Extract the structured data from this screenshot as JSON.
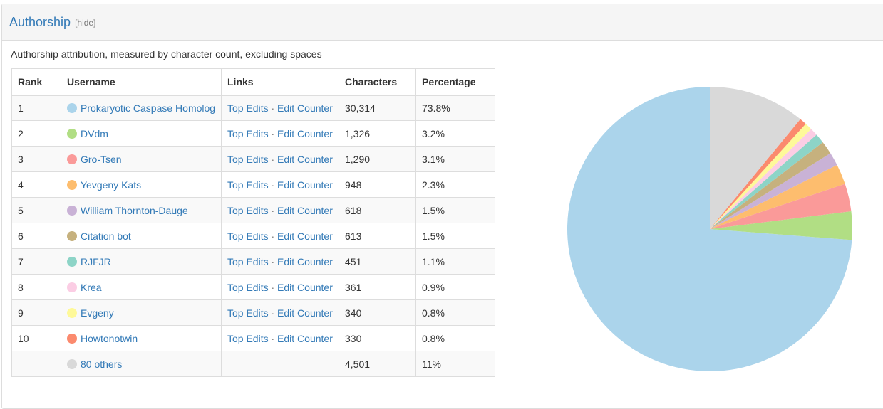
{
  "section": {
    "title": "Authorship",
    "toggle": "[hide]",
    "description": "Authorship attribution, measured by character count, excluding spaces"
  },
  "table": {
    "headers": {
      "rank": "Rank",
      "username": "Username",
      "links": "Links",
      "characters": "Characters",
      "percentage": "Percentage"
    },
    "link_labels": {
      "top_edits": "Top Edits",
      "separator": "·",
      "edit_counter": "Edit Counter"
    },
    "rows": [
      {
        "rank": "1",
        "username": "Prokaryotic Caspase Homolog",
        "characters": "30,314",
        "percentage": "73.8%",
        "color": "#abd4eb"
      },
      {
        "rank": "2",
        "username": "DVdm",
        "characters": "1,326",
        "percentage": "3.2%",
        "color": "#b1de84"
      },
      {
        "rank": "3",
        "username": "Gro-Tsen",
        "characters": "1,290",
        "percentage": "3.1%",
        "color": "#fa9a99"
      },
      {
        "rank": "4",
        "username": "Yevgeny Kats",
        "characters": "948",
        "percentage": "2.3%",
        "color": "#fdbd6e"
      },
      {
        "rank": "5",
        "username": "William Thornton-Dauge",
        "characters": "618",
        "percentage": "1.5%",
        "color": "#c9b2d6"
      },
      {
        "rank": "6",
        "username": "Citation bot",
        "characters": "613",
        "percentage": "1.5%",
        "color": "#c6b17e"
      },
      {
        "rank": "7",
        "username": "RJFJR",
        "characters": "451",
        "percentage": "1.1%",
        "color": "#8dd4c7"
      },
      {
        "rank": "8",
        "username": "Krea",
        "characters": "361",
        "percentage": "0.9%",
        "color": "#fbcde4"
      },
      {
        "rank": "9",
        "username": "Evgeny",
        "characters": "340",
        "percentage": "0.8%",
        "color": "#fef999"
      },
      {
        "rank": "10",
        "username": "Howtonotwin",
        "characters": "330",
        "percentage": "0.8%",
        "color": "#fb8a6e"
      }
    ],
    "others": {
      "username": "80 others",
      "characters": "4,501",
      "percentage": "11%",
      "color": "#d9d9d9"
    }
  },
  "chart_data": {
    "type": "pie",
    "categories": [
      "Prokaryotic Caspase Homolog",
      "DVdm",
      "Gro-Tsen",
      "Yevgeny Kats",
      "William Thornton-Dauge",
      "Citation bot",
      "RJFJR",
      "Krea",
      "Evgeny",
      "Howtonotwin",
      "80 others"
    ],
    "values": [
      30314,
      1326,
      1290,
      948,
      618,
      613,
      451,
      361,
      340,
      330,
      4501
    ],
    "colors": [
      "#abd4eb",
      "#b1de84",
      "#fa9a99",
      "#fdbd6e",
      "#c9b2d6",
      "#c6b17e",
      "#8dd4c7",
      "#fbcde4",
      "#fef999",
      "#fb8a6e",
      "#d9d9d9"
    ],
    "direction": "clockwise from top"
  }
}
